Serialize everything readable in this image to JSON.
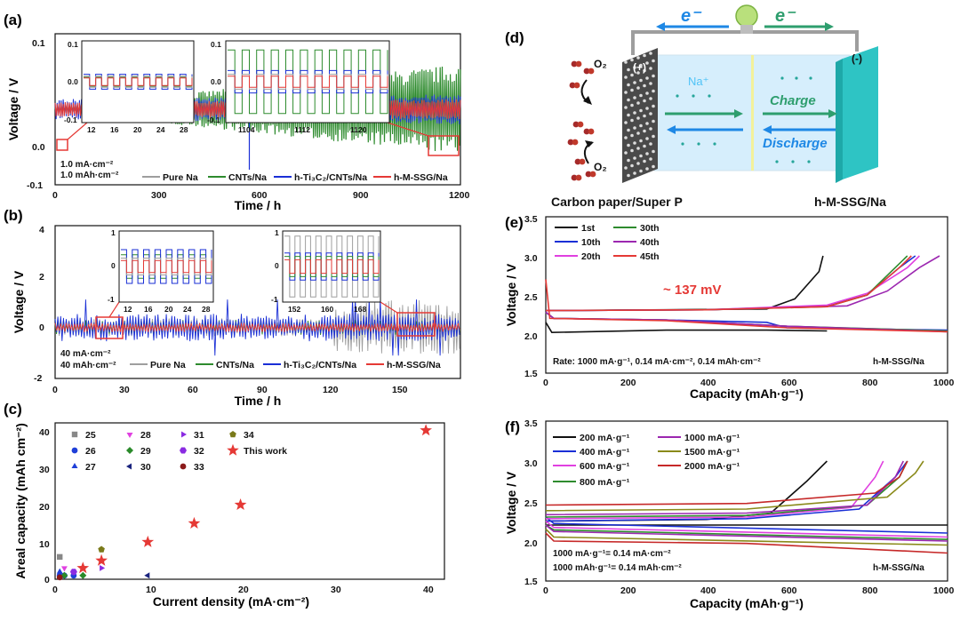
{
  "panels": {
    "a": {
      "label": "(a)",
      "x_label": "Time / h",
      "y_label": "Voltage / V",
      "note1": "1.0 mA·cm⁻²",
      "note2": "1.0 mAh·cm⁻²",
      "legend": [
        "Pure Na",
        "CNTs/Na",
        "h-Ti₃C₂/CNTs/Na",
        "h-M-SSG/Na"
      ],
      "xticks": [
        "0",
        "300",
        "600",
        "900",
        "1200"
      ],
      "yticks": [
        "0.1",
        "0.0",
        "-0.1"
      ],
      "inset1_yticks": [
        "0.1",
        "0.0",
        "-0.1"
      ],
      "inset1_xticks": [
        "12",
        "16",
        "20",
        "24",
        "28"
      ],
      "inset2_yticks": [
        "0.1",
        "0.0",
        "-0.1"
      ],
      "inset2_xticks": [
        "1104",
        "1112",
        "1120"
      ]
    },
    "b": {
      "label": "(b)",
      "x_label": "Time / h",
      "y_label": "Voltage / V",
      "note1": "40 mA·cm⁻²",
      "note2": "40 mAh·cm⁻²",
      "legend": [
        "Pure Na",
        "CNTs/Na",
        "h-Ti₃C₂/CNTs/Na",
        "h-M-SSG/Na"
      ],
      "xticks": [
        "0",
        "30",
        "60",
        "90",
        "120",
        "150"
      ],
      "yticks": [
        "4",
        "2",
        "0",
        "-2"
      ],
      "inset1_yticks": [
        "1",
        "0",
        "-1"
      ],
      "inset1_xticks": [
        "12",
        "16",
        "20",
        "24",
        "28"
      ],
      "inset2_yticks": [
        "1",
        "0",
        "-1"
      ],
      "inset2_xticks": [
        "152",
        "160",
        "168"
      ]
    },
    "c": {
      "label": "(c)",
      "x_label": "Current density (mA·cm⁻²)",
      "y_label": "Areal capacity (mAh cm⁻²)",
      "xticks": [
        "0",
        "10",
        "20",
        "30",
        "40"
      ],
      "yticks": [
        "0",
        "10",
        "20",
        "30",
        "40"
      ],
      "legend": [
        {
          "name": "25",
          "color": "#888888",
          "marker": "square"
        },
        {
          "name": "26",
          "color": "#1f3fd8",
          "marker": "circle"
        },
        {
          "name": "27",
          "color": "#1f3fd8",
          "marker": "triangle-up"
        },
        {
          "name": "28",
          "color": "#e040e0",
          "marker": "triangle-down"
        },
        {
          "name": "29",
          "color": "#2a8a2a",
          "marker": "diamond"
        },
        {
          "name": "30",
          "color": "#1a237e",
          "marker": "triangle-left"
        },
        {
          "name": "31",
          "color": "#8a2be2",
          "marker": "triangle-right"
        },
        {
          "name": "32",
          "color": "#8a2be2",
          "marker": "hexagon"
        },
        {
          "name": "33",
          "color": "#8b1a1a",
          "marker": "circle"
        },
        {
          "name": "34",
          "color": "#7a7a1a",
          "marker": "pentagon"
        },
        {
          "name": "This work",
          "color": "#e53935",
          "marker": "star"
        }
      ]
    },
    "d": {
      "label": "(d)",
      "electron_left": "e⁻",
      "electron_right": "e⁻",
      "o2_top": "O₂",
      "o2_bottom": "O₂",
      "plus": "(+)",
      "minus": "(-)",
      "na_ion": "Na⁺",
      "charge": "Charge",
      "discharge": "Discharge",
      "cathode_label": "Carbon paper/Super P",
      "anode_label": "h-M-SSG/Na"
    },
    "e": {
      "label": "(e)",
      "x_label": "Capacity (mAh·g⁻¹)",
      "y_label": "Voltage / V",
      "xticks": [
        "0",
        "200",
        "400",
        "600",
        "800",
        "1000"
      ],
      "yticks": [
        "1.5",
        "2.0",
        "2.5",
        "3.0",
        "3.5"
      ],
      "legend": [
        "1st",
        "10th",
        "20th",
        "30th",
        "40th",
        "45th"
      ],
      "annotation": "~ 137 mV",
      "rate": "Rate:  1000 mA·g⁻¹, 0.14 mA·cm⁻², 0.14 mAh·cm⁻²",
      "tag": "h-M-SSG/Na"
    },
    "f": {
      "label": "(f)",
      "x_label": "Capacity (mAh·g⁻¹)",
      "y_label": "Voltage / V",
      "xticks": [
        "0",
        "200",
        "400",
        "600",
        "800",
        "1000"
      ],
      "yticks": [
        "1.5",
        "2.0",
        "2.5",
        "3.0",
        "3.5"
      ],
      "legend": [
        "200 mA·g⁻¹",
        "400 mA·g⁻¹",
        "600 mA·g⁻¹",
        "800 mA·g⁻¹",
        "1000 mA·g⁻¹",
        "1500 mA·g⁻¹",
        "2000 mA·g⁻¹"
      ],
      "note1": "1000 mA·g⁻¹= 0.14 mA·cm⁻²",
      "note2": "1000 mAh·g⁻¹= 0.14 mAh·cm⁻²",
      "tag": "h-M-SSG/Na"
    }
  },
  "colors": {
    "pure_na": "#9e9e9e",
    "cnts": "#2e8b2e",
    "ti3c2": "#1a2fd6",
    "mssg": "#e53935",
    "e_series": [
      "#111111",
      "#1a2fd6",
      "#e040e0",
      "#2e8b2e",
      "#9c27b0",
      "#e53935"
    ],
    "f_series": [
      "#111111",
      "#1a2fd6",
      "#e040e0",
      "#2e8b2e",
      "#9c27b0",
      "#8a8a1a",
      "#c62828"
    ]
  },
  "chart_data": [
    {
      "panel": "a",
      "type": "line",
      "xlabel": "Time / h",
      "ylabel": "Voltage / V",
      "xlim": [
        0,
        1200
      ],
      "ylim": [
        -0.15,
        0.15
      ],
      "series": [
        {
          "name": "Pure Na",
          "overpotential_start": 0.01,
          "overpotential_end": 0.02
        },
        {
          "name": "CNTs/Na",
          "overpotential_start": 0.005,
          "overpotential_end": 0.09
        },
        {
          "name": "h-Ti₃C₂/CNTs/Na",
          "overpotential_start": 0.02,
          "overpotential_end": 0.03
        },
        {
          "name": "h-M-SSG/Na",
          "overpotential_start": 0.015,
          "overpotential_end": 0.02
        }
      ]
    },
    {
      "panel": "b",
      "type": "line",
      "xlabel": "Time / h",
      "ylabel": "Voltage / V",
      "xlim": [
        0,
        175
      ],
      "ylim": [
        -2,
        4
      ],
      "series": [
        {
          "name": "Pure Na",
          "overpotential": 0.3
        },
        {
          "name": "CNTs/Na",
          "overpotential": 0.25
        },
        {
          "name": "h-Ti₃C₂/CNTs/Na",
          "overpotential": 0.45
        },
        {
          "name": "h-M-SSG/Na",
          "overpotential": 0.15
        }
      ]
    },
    {
      "panel": "c",
      "type": "scatter",
      "xlabel": "Current density (mA·cm⁻²)",
      "ylabel": "Areal capacity (mAh cm⁻²)",
      "xlim": [
        0,
        42
      ],
      "ylim": [
        0,
        42
      ],
      "series": [
        {
          "name": "25",
          "x": [
            0.5
          ],
          "y": [
            6
          ]
        },
        {
          "name": "26",
          "x": [
            0.5,
            1,
            2
          ],
          "y": [
            1,
            1,
            1
          ]
        },
        {
          "name": "27",
          "x": [
            0.5,
            1
          ],
          "y": [
            2,
            1
          ]
        },
        {
          "name": "28",
          "x": [
            1,
            2
          ],
          "y": [
            3,
            2
          ]
        },
        {
          "name": "29",
          "x": [
            1,
            3
          ],
          "y": [
            1,
            1
          ]
        },
        {
          "name": "30",
          "x": [
            10
          ],
          "y": [
            1
          ]
        },
        {
          "name": "31",
          "x": [
            5
          ],
          "y": [
            3
          ]
        },
        {
          "name": "32",
          "x": [
            2
          ],
          "y": [
            2
          ]
        },
        {
          "name": "33",
          "x": [
            0.5
          ],
          "y": [
            0.5
          ]
        },
        {
          "name": "34",
          "x": [
            5
          ],
          "y": [
            8
          ]
        },
        {
          "name": "This work",
          "x": [
            3,
            5,
            10,
            15,
            20,
            40
          ],
          "y": [
            3,
            5,
            10,
            15,
            20,
            40
          ]
        }
      ]
    },
    {
      "panel": "e",
      "type": "line",
      "xlabel": "Capacity (mAh·g⁻¹)",
      "ylabel": "Voltage / V",
      "xlim": [
        0,
        1000
      ],
      "ylim": [
        1.5,
        3.5
      ],
      "series": [
        {
          "name": "1st",
          "discharge": [
            [
              0,
              2.15
            ],
            [
              15,
              2.02
            ],
            [
              100,
              2.03
            ],
            [
              300,
              2.05
            ],
            [
              550,
              2.05
            ],
            [
              700,
              2.04
            ]
          ],
          "charge": [
            [
              0,
              2.3
            ],
            [
              300,
              2.31
            ],
            [
              550,
              2.32
            ],
            [
              620,
              2.45
            ],
            [
              680,
              2.8
            ],
            [
              690,
              3.0
            ]
          ]
        },
        {
          "name": "10th",
          "discharge": [
            [
              0,
              2.28
            ],
            [
              20,
              2.2
            ],
            [
              300,
              2.18
            ],
            [
              550,
              2.15
            ],
            [
              600,
              2.08
            ],
            [
              1000,
              2.05
            ]
          ],
          "charge": [
            [
              0,
              2.3
            ],
            [
              400,
              2.31
            ],
            [
              700,
              2.36
            ],
            [
              800,
              2.5
            ],
            [
              880,
              2.85
            ],
            [
              920,
              3.0
            ]
          ]
        },
        {
          "name": "20th",
          "discharge": [
            [
              0,
              2.28
            ],
            [
              20,
              2.2
            ],
            [
              300,
              2.18
            ],
            [
              600,
              2.1
            ],
            [
              1000,
              2.04
            ]
          ],
          "charge": [
            [
              0,
              2.3
            ],
            [
              400,
              2.31
            ],
            [
              700,
              2.37
            ],
            [
              800,
              2.52
            ],
            [
              900,
              2.85
            ],
            [
              930,
              3.0
            ]
          ]
        },
        {
          "name": "30th",
          "discharge": [
            [
              0,
              2.28
            ],
            [
              20,
              2.2
            ],
            [
              300,
              2.18
            ],
            [
              600,
              2.1
            ],
            [
              1000,
              2.04
            ]
          ],
          "charge": [
            [
              0,
              2.3
            ],
            [
              400,
              2.31
            ],
            [
              700,
              2.35
            ],
            [
              800,
              2.5
            ],
            [
              870,
              2.85
            ],
            [
              900,
              3.0
            ]
          ]
        },
        {
          "name": "40th",
          "discharge": [
            [
              0,
              2.28
            ],
            [
              20,
              2.2
            ],
            [
              300,
              2.18
            ],
            [
              600,
              2.1
            ],
            [
              1000,
              2.03
            ]
          ],
          "charge": [
            [
              0,
              2.3
            ],
            [
              400,
              2.31
            ],
            [
              750,
              2.36
            ],
            [
              850,
              2.55
            ],
            [
              930,
              2.85
            ],
            [
              980,
              3.0
            ]
          ]
        },
        {
          "name": "45th",
          "discharge": [
            [
              0,
              2.7
            ],
            [
              10,
              2.2
            ],
            [
              300,
              2.17
            ],
            [
              600,
              2.08
            ],
            [
              1000,
              2.03
            ]
          ],
          "charge": [
            [
              0,
              2.3
            ],
            [
              400,
              2.31
            ],
            [
              700,
              2.35
            ],
            [
              800,
              2.5
            ],
            [
              880,
              2.85
            ],
            [
              910,
              3.0
            ]
          ]
        }
      ]
    },
    {
      "panel": "f",
      "type": "line",
      "xlabel": "Capacity (mAh·g⁻¹)",
      "ylabel": "Voltage / V",
      "xlim": [
        0,
        1000
      ],
      "ylim": [
        1.5,
        3.5
      ],
      "series": [
        {
          "name": "200 mA·g⁻¹",
          "discharge": [
            [
              0,
              2.2
            ],
            [
              1000,
              2.2
            ]
          ],
          "charge": [
            [
              0,
              2.25
            ],
            [
              400,
              2.27
            ],
            [
              560,
              2.35
            ],
            [
              650,
              2.75
            ],
            [
              700,
              3.0
            ]
          ]
        },
        {
          "name": "400 mA·g⁻¹",
          "discharge": [
            [
              0,
              2.3
            ],
            [
              20,
              2.22
            ],
            [
              1000,
              2.1
            ]
          ],
          "charge": [
            [
              0,
              2.25
            ],
            [
              500,
              2.28
            ],
            [
              780,
              2.4
            ],
            [
              870,
              2.8
            ],
            [
              900,
              3.0
            ]
          ]
        },
        {
          "name": "600 mA·g⁻¹",
          "discharge": [
            [
              0,
              2.25
            ],
            [
              20,
              2.17
            ],
            [
              1000,
              2.05
            ]
          ],
          "charge": [
            [
              0,
              2.28
            ],
            [
              500,
              2.3
            ],
            [
              760,
              2.42
            ],
            [
              820,
              2.8
            ],
            [
              840,
              3.0
            ]
          ]
        },
        {
          "name": "800 mA·g⁻¹",
          "discharge": [
            [
              0,
              2.2
            ],
            [
              20,
              2.14
            ],
            [
              1000,
              2.02
            ]
          ],
          "charge": [
            [
              0,
              2.3
            ],
            [
              500,
              2.32
            ],
            [
              800,
              2.45
            ],
            [
              880,
              2.8
            ],
            [
              900,
              3.0
            ]
          ]
        },
        {
          "name": "1000 mA·g⁻¹",
          "discharge": [
            [
              0,
              2.2
            ],
            [
              20,
              2.12
            ],
            [
              1000,
              2.0
            ]
          ],
          "charge": [
            [
              0,
              2.33
            ],
            [
              500,
              2.35
            ],
            [
              800,
              2.45
            ],
            [
              870,
              2.8
            ],
            [
              890,
              3.0
            ]
          ]
        },
        {
          "name": "1500 mA·g⁻¹",
          "discharge": [
            [
              0,
              2.15
            ],
            [
              20,
              2.05
            ],
            [
              1000,
              1.95
            ]
          ],
          "charge": [
            [
              0,
              2.38
            ],
            [
              500,
              2.4
            ],
            [
              850,
              2.55
            ],
            [
              920,
              2.85
            ],
            [
              940,
              3.0
            ]
          ]
        },
        {
          "name": "2000 mA·g⁻¹",
          "discharge": [
            [
              0,
              2.1
            ],
            [
              20,
              2.0
            ],
            [
              500,
              1.97
            ],
            [
              1000,
              1.85
            ]
          ],
          "charge": [
            [
              0,
              2.45
            ],
            [
              500,
              2.47
            ],
            [
              820,
              2.6
            ],
            [
              880,
              2.8
            ],
            [
              900,
              3.0
            ]
          ]
        }
      ]
    }
  ]
}
